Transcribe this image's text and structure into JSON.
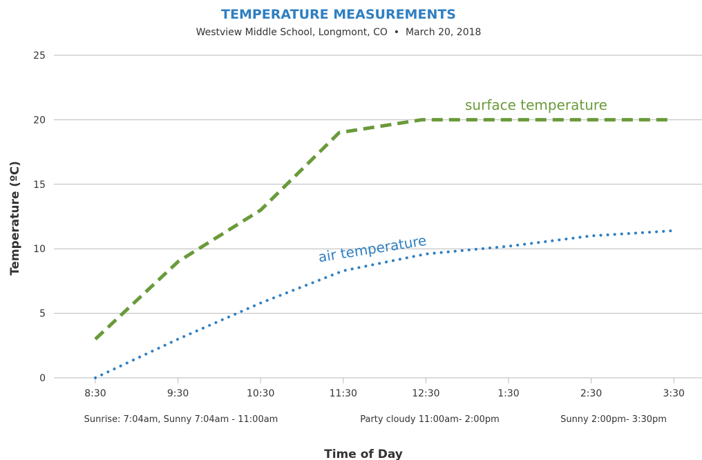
{
  "chart_data": {
    "type": "line",
    "title": "TEMPERATURE MEASUREMENTS",
    "subtitle": "Westview Middle School, Longmont, CO  •  March 20, 2018",
    "xlabel": "Time of Day",
    "ylabel": "Temperature (ºC)",
    "ylim": [
      0,
      25
    ],
    "y_ticks": [
      "0",
      "5",
      "10",
      "15",
      "20",
      "25"
    ],
    "categories": [
      "8:30",
      "9:30",
      "10:30",
      "11:30",
      "12:30",
      "1:30",
      "2:30",
      "3:30"
    ],
    "grid": "horizontal",
    "series": [
      {
        "name": "surface temperature",
        "style": "dashed",
        "color": "#6a9a3a",
        "points": [
          [
            0,
            3
          ],
          [
            1,
            9
          ],
          [
            2,
            13
          ],
          [
            2.95,
            19
          ],
          [
            3.95,
            20
          ],
          [
            5,
            20
          ],
          [
            6,
            20
          ],
          [
            6.95,
            20
          ]
        ]
      },
      {
        "name": "air temperature",
        "style": "dotted",
        "color": "#2f7fc1",
        "points": [
          [
            0,
            0
          ],
          [
            1,
            3
          ],
          [
            2,
            5.8
          ],
          [
            3,
            8.3
          ],
          [
            4,
            9.6
          ],
          [
            5,
            10.2
          ],
          [
            6,
            11
          ],
          [
            7,
            11.4
          ]
        ]
      }
    ],
    "annotations": [
      "Sunrise: 7:04am, Sunny 7:04am - 11:00am",
      "Party cloudy 11:00am- 2:00pm",
      "Sunny 2:00pm- 3:30pm"
    ]
  }
}
